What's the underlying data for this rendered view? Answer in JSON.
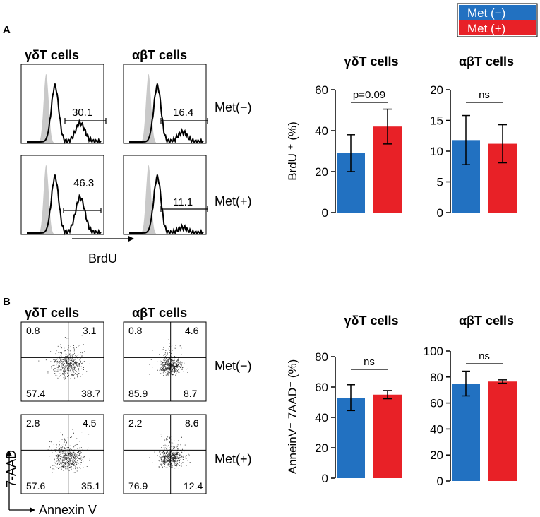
{
  "colors": {
    "met_minus": "#2271c1",
    "met_plus": "#e82127",
    "ink": "#000000",
    "gray": "#c9c9c9"
  },
  "legend": {
    "met_minus": "Met (−)",
    "met_plus": "Met (+)"
  },
  "panelA": {
    "label": "A",
    "flow": {
      "col1_title": "γδT cells",
      "col2_title": "αβT cells",
      "row1_label": "Met(−)",
      "row2_label": "Met(+)",
      "x_axis_label": "BrdU",
      "gates": {
        "gd_minus": "30.1",
        "ab_minus": "16.4",
        "gd_plus": "46.3",
        "ab_plus": "11.1"
      }
    }
  },
  "panelB": {
    "label": "B",
    "flow": {
      "col1_title": "γδT cells",
      "col2_title": "αβT cells",
      "row1_label": "Met(−)",
      "row2_label": "Met(+)",
      "x_axis_label": "Annexin V",
      "y_axis_label": "7-AAD",
      "quadrants": {
        "gd_minus": [
          "0.8",
          "3.1",
          "57.4",
          "38.7"
        ],
        "ab_minus": [
          "0.8",
          "4.6",
          "85.9",
          "8.7"
        ],
        "gd_plus": [
          "2.8",
          "4.5",
          "57.6",
          "35.1"
        ],
        "ab_plus": [
          "2.2",
          "8.6",
          "76.9",
          "12.4"
        ]
      }
    }
  },
  "chart_data": [
    {
      "type": "bar",
      "id": "a_gd",
      "title": "γδT cells",
      "ylabel": "BrdU ⁺ (%)",
      "ylim": [
        0,
        60
      ],
      "yticks": [
        0,
        20,
        40,
        60
      ],
      "categories": [
        "Met (−)",
        "Met (+)"
      ],
      "values": [
        29,
        42
      ],
      "errors": [
        9,
        8.5
      ],
      "annotation": "p=0.09"
    },
    {
      "type": "bar",
      "id": "a_ab",
      "title": "αβT cells",
      "ylabel": "",
      "ylim": [
        0,
        20
      ],
      "yticks": [
        0,
        5,
        10,
        15,
        20
      ],
      "categories": [
        "Met (−)",
        "Met (+)"
      ],
      "values": [
        11.8,
        11.2
      ],
      "errors": [
        4,
        3.1
      ],
      "annotation": "ns"
    },
    {
      "type": "bar",
      "id": "b_gd",
      "title": "γδT cells",
      "ylabel": "AnneinV⁻ 7AAD⁻ (%)",
      "ylim": [
        0,
        80
      ],
      "yticks": [
        0,
        20,
        40,
        60,
        80
      ],
      "categories": [
        "Met (−)",
        "Met (+)"
      ],
      "values": [
        53,
        55
      ],
      "errors": [
        8.5,
        2.7
      ],
      "annotation": "ns"
    },
    {
      "type": "bar",
      "id": "b_ab",
      "title": "αβT cells",
      "ylabel": "",
      "ylim": [
        0,
        100
      ],
      "yticks": [
        0,
        20,
        40,
        60,
        80,
        100
      ],
      "categories": [
        "Met (−)",
        "Met (+)"
      ],
      "values": [
        75,
        76.5
      ],
      "errors": [
        9.5,
        1.3
      ],
      "annotation": "ns"
    }
  ]
}
